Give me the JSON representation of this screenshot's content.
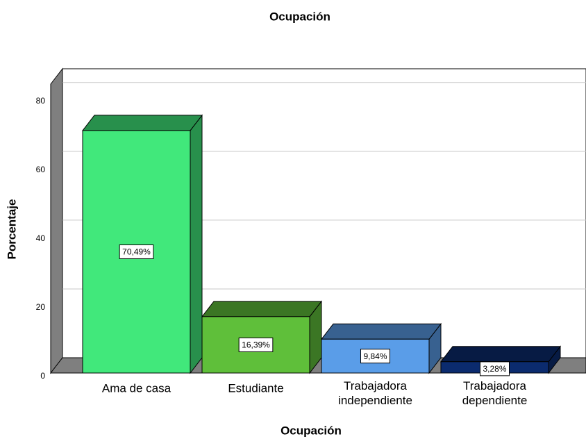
{
  "chart_data": {
    "type": "bar3d",
    "title": "Ocupación",
    "categories": [
      "Ama de casa",
      "Estudiante",
      "Trabajadora independiente",
      "Trabajadora dependiente"
    ],
    "values": [
      70.49,
      16.39,
      9.84,
      3.28
    ],
    "value_labels": [
      "70,49%",
      "16,39%",
      "9,84%",
      "3,28%"
    ],
    "colors": [
      "#41e87b",
      "#5fbf3a",
      "#5a9de8",
      "#0b2b6e"
    ],
    "x_label": "Ocupación",
    "y_label": "Porcentaje",
    "ylim": [
      0,
      84
    ],
    "yticks": [
      0,
      20,
      40,
      60,
      80
    ],
    "grid": true
  }
}
